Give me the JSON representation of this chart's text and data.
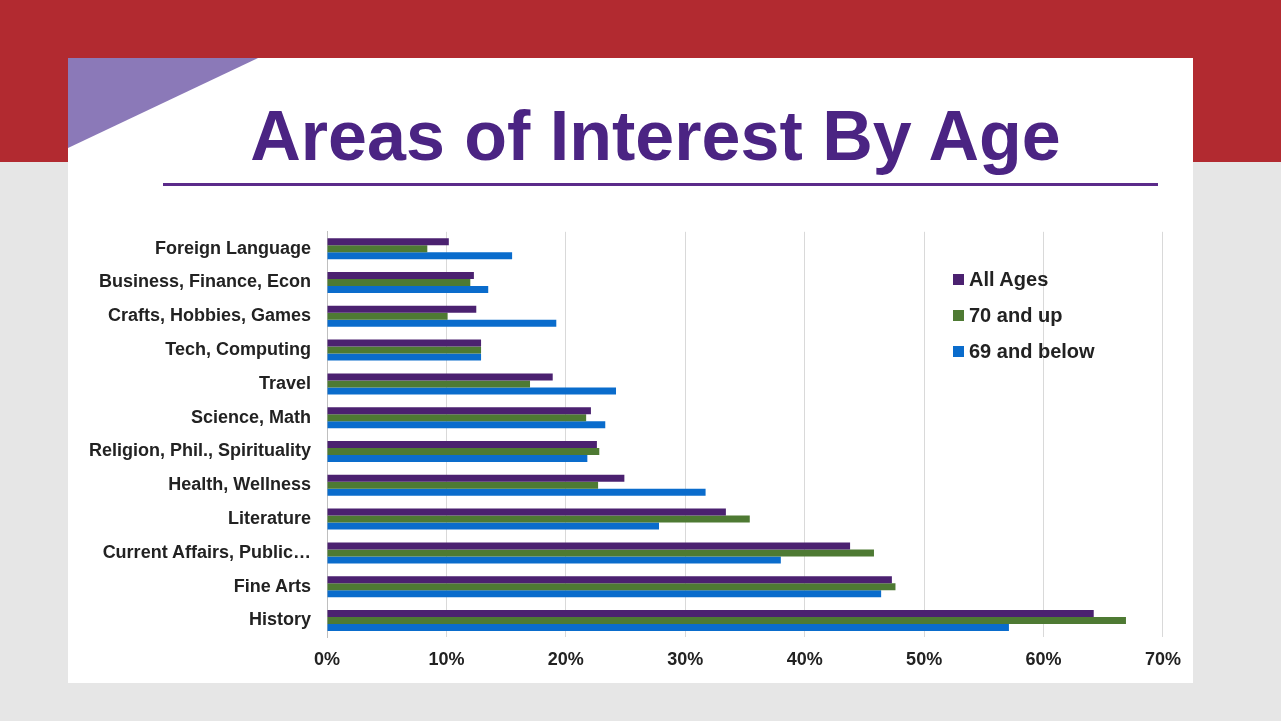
{
  "chart_data": {
    "type": "bar",
    "orientation": "horizontal",
    "title": "Areas of Interest By Age",
    "categories": [
      "Foreign Language",
      "Business, Finance, Econ",
      "Crafts, Hobbies, Games",
      "Tech, Computing",
      "Travel",
      "Science, Math",
      "Religion, Phil., Spirituality",
      "Health, Wellness",
      "Literature",
      "Current Affairs, Public…",
      "Fine Arts",
      "History"
    ],
    "series": [
      {
        "name": "All Ages",
        "color": "#4b2170",
        "values": [
          10.2,
          12.3,
          12.5,
          12.9,
          18.9,
          22.1,
          22.6,
          24.9,
          33.4,
          43.8,
          47.3,
          64.2
        ]
      },
      {
        "name": "70 and up",
        "color": "#4e7a33",
        "values": [
          8.4,
          12.0,
          10.1,
          12.9,
          17.0,
          21.7,
          22.8,
          22.7,
          35.4,
          45.8,
          47.6,
          66.9
        ]
      },
      {
        "name": "69 and below",
        "color": "#0a6ccc",
        "values": [
          15.5,
          13.5,
          19.2,
          12.9,
          24.2,
          23.3,
          21.8,
          31.7,
          27.8,
          38.0,
          46.4,
          57.1
        ]
      }
    ],
    "xlim": [
      0,
      70
    ],
    "xticks": [
      {
        "value": 0,
        "label": "0%"
      },
      {
        "value": 10,
        "label": "10%"
      },
      {
        "value": 20,
        "label": "20%"
      },
      {
        "value": 30,
        "label": "30%"
      },
      {
        "value": 40,
        "label": "40%"
      },
      {
        "value": 50,
        "label": "50%"
      },
      {
        "value": 60,
        "label": "60%"
      },
      {
        "value": 70,
        "label": "70%"
      }
    ],
    "grid": "x",
    "legend": "top right"
  }
}
